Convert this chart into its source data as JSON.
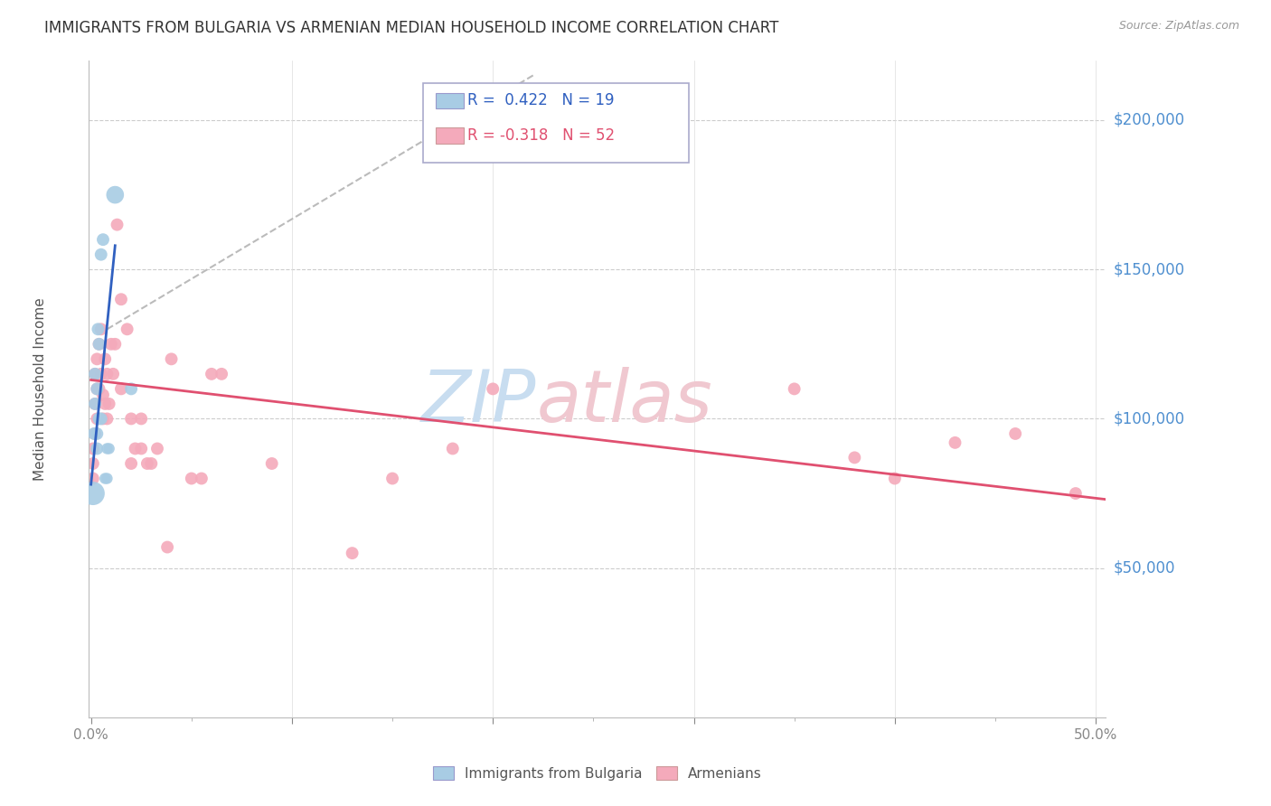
{
  "title": "IMMIGRANTS FROM BULGARIA VS ARMENIAN MEDIAN HOUSEHOLD INCOME CORRELATION CHART",
  "source": "Source: ZipAtlas.com",
  "ylabel": "Median Household Income",
  "ytick_labels": [
    "$200,000",
    "$150,000",
    "$100,000",
    "$50,000"
  ],
  "ytick_values": [
    200000,
    150000,
    100000,
    50000
  ],
  "ymin": 0,
  "ymax": 220000,
  "xmin": -0.001,
  "xmax": 0.505,
  "legend_labels": [
    "Immigrants from Bulgaria",
    "Armenians"
  ],
  "bulgaria_x": [
    0.001,
    0.0015,
    0.002,
    0.002,
    0.003,
    0.003,
    0.003,
    0.0035,
    0.004,
    0.004,
    0.005,
    0.005,
    0.006,
    0.007,
    0.008,
    0.008,
    0.009,
    0.012,
    0.02
  ],
  "bulgaria_y": [
    75000,
    95000,
    105000,
    115000,
    90000,
    95000,
    110000,
    130000,
    100000,
    125000,
    155000,
    100000,
    160000,
    80000,
    80000,
    90000,
    90000,
    175000,
    110000
  ],
  "bulgaria_sizes": [
    350,
    100,
    100,
    100,
    100,
    100,
    100,
    100,
    100,
    100,
    100,
    100,
    100,
    80,
    80,
    80,
    80,
    200,
    100
  ],
  "armenian_x": [
    0.001,
    0.001,
    0.001,
    0.002,
    0.002,
    0.002,
    0.003,
    0.003,
    0.003,
    0.004,
    0.004,
    0.005,
    0.005,
    0.006,
    0.006,
    0.007,
    0.007,
    0.008,
    0.008,
    0.009,
    0.01,
    0.011,
    0.012,
    0.013,
    0.015,
    0.015,
    0.018,
    0.02,
    0.02,
    0.022,
    0.025,
    0.025,
    0.028,
    0.03,
    0.033,
    0.038,
    0.04,
    0.05,
    0.055,
    0.06,
    0.065,
    0.09,
    0.13,
    0.15,
    0.18,
    0.2,
    0.35,
    0.38,
    0.4,
    0.43,
    0.46,
    0.49
  ],
  "armenian_y": [
    90000,
    85000,
    80000,
    115000,
    105000,
    95000,
    120000,
    110000,
    100000,
    125000,
    110000,
    130000,
    115000,
    108000,
    100000,
    120000,
    105000,
    115000,
    100000,
    105000,
    125000,
    115000,
    125000,
    165000,
    140000,
    110000,
    130000,
    85000,
    100000,
    90000,
    100000,
    90000,
    85000,
    85000,
    90000,
    57000,
    120000,
    80000,
    80000,
    115000,
    115000,
    85000,
    55000,
    80000,
    90000,
    110000,
    110000,
    87000,
    80000,
    92000,
    95000,
    75000
  ],
  "armenian_sizes": [
    100,
    100,
    100,
    100,
    100,
    100,
    100,
    100,
    100,
    100,
    100,
    100,
    100,
    100,
    100,
    100,
    100,
    100,
    100,
    100,
    100,
    100,
    100,
    100,
    100,
    100,
    100,
    100,
    100,
    100,
    100,
    100,
    100,
    100,
    100,
    100,
    100,
    100,
    100,
    100,
    100,
    100,
    100,
    100,
    100,
    100,
    100,
    100,
    100,
    100,
    100,
    100
  ],
  "bulgaria_line_x": [
    0.0,
    0.012
  ],
  "bulgaria_line_y": [
    78000,
    158000
  ],
  "armenian_line_x": [
    0.0,
    0.505
  ],
  "armenian_line_y": [
    113000,
    73000
  ],
  "dashed_line_x": [
    0.008,
    0.22
  ],
  "dashed_line_y": [
    130000,
    215000
  ],
  "blue_scatter": "#a8cce4",
  "pink_scatter": "#f4aabb",
  "blue_line": "#3060c0",
  "pink_line": "#e05070",
  "dashed_color": "#bbbbbb",
  "tick_color": "#5090d0",
  "background": "#ffffff",
  "grid_color": "#cccccc",
  "title_color": "#333333",
  "watermark_zip_color": "#c8ddf0",
  "watermark_atlas_color": "#f0c8d0"
}
